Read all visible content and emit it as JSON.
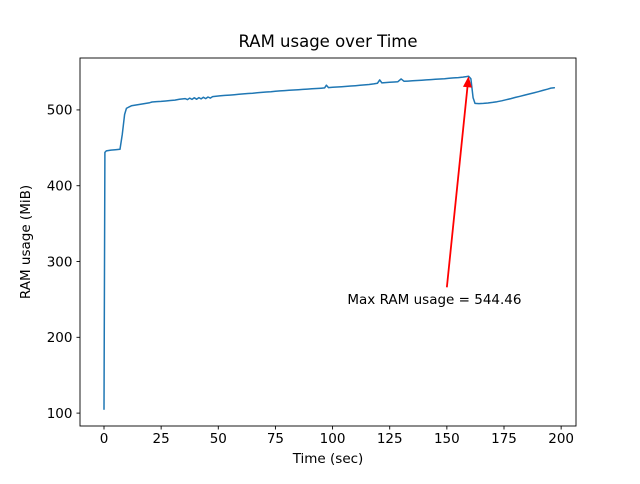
{
  "chart_data": {
    "type": "line",
    "title": "RAM usage over Time",
    "xlabel": "Time (sec)",
    "ylabel": "RAM usage (MiB)",
    "xlim": [
      -10.5,
      206.5
    ],
    "ylim": [
      83,
      568.5
    ],
    "xticks": [
      0,
      25,
      50,
      75,
      100,
      125,
      150,
      175,
      200
    ],
    "yticks": [
      100,
      200,
      300,
      400,
      500
    ],
    "grid": false,
    "legend": "none",
    "colors": {
      "line": "#1f77b4",
      "annotation": "#ff0000",
      "text": "#000000"
    },
    "series": [
      {
        "name": "RAM usage",
        "points": [
          [
            0,
            105
          ],
          [
            0.4,
            444
          ],
          [
            1,
            446
          ],
          [
            3,
            447
          ],
          [
            5,
            447.5
          ],
          [
            7,
            448
          ],
          [
            8,
            468
          ],
          [
            9,
            494
          ],
          [
            9.8,
            502
          ],
          [
            11,
            504
          ],
          [
            12,
            505.5
          ],
          [
            14,
            506.5
          ],
          [
            16,
            507.5
          ],
          [
            18,
            508.5
          ],
          [
            20,
            509.5
          ],
          [
            21,
            510.5
          ],
          [
            23,
            511
          ],
          [
            25,
            511.2
          ],
          [
            27,
            511.8
          ],
          [
            29,
            512.4
          ],
          [
            31,
            513
          ],
          [
            33,
            514
          ],
          [
            34.5,
            514.6
          ],
          [
            35.5,
            515
          ],
          [
            36.5,
            513.6
          ],
          [
            37.5,
            515.6
          ],
          [
            38.5,
            513.9
          ],
          [
            39.5,
            516
          ],
          [
            40.5,
            514.2
          ],
          [
            41.5,
            516.3
          ],
          [
            42.5,
            514.6
          ],
          [
            43.5,
            516.6
          ],
          [
            44.5,
            515
          ],
          [
            45.5,
            517
          ],
          [
            46.5,
            515.6
          ],
          [
            47.5,
            517.6
          ],
          [
            49,
            518
          ],
          [
            51,
            518.6
          ],
          [
            53,
            519.1
          ],
          [
            55,
            519.6
          ],
          [
            57,
            520.1
          ],
          [
            59,
            520.6
          ],
          [
            61,
            521.1
          ],
          [
            63,
            521.6
          ],
          [
            65,
            522.1
          ],
          [
            67,
            522.6
          ],
          [
            69,
            523.1
          ],
          [
            71,
            523.6
          ],
          [
            73,
            524.1
          ],
          [
            75,
            524.6
          ],
          [
            77,
            525.1
          ],
          [
            79,
            525.5
          ],
          [
            81,
            525.9
          ],
          [
            83,
            526.3
          ],
          [
            85,
            526.7
          ],
          [
            87,
            527.1
          ],
          [
            89,
            527.5
          ],
          [
            91,
            527.9
          ],
          [
            93,
            528.3
          ],
          [
            95,
            528.7
          ],
          [
            96.5,
            529
          ],
          [
            97.3,
            532.6
          ],
          [
            98.2,
            529.4
          ],
          [
            100,
            529.8
          ],
          [
            102,
            530.2
          ],
          [
            104,
            530.6
          ],
          [
            106,
            531
          ],
          [
            108,
            531.5
          ],
          [
            110,
            532
          ],
          [
            112,
            532.5
          ],
          [
            114,
            533
          ],
          [
            116,
            533.6
          ],
          [
            118,
            534.3
          ],
          [
            119.6,
            535.1
          ],
          [
            120.6,
            539.6
          ],
          [
            121.6,
            535.6
          ],
          [
            123,
            536
          ],
          [
            125,
            536.5
          ],
          [
            127,
            536.9
          ],
          [
            128.6,
            537.2
          ],
          [
            130,
            540.9
          ],
          [
            131.3,
            537.7
          ],
          [
            133,
            538
          ],
          [
            135,
            538.4
          ],
          [
            137,
            538.8
          ],
          [
            139,
            539.2
          ],
          [
            141,
            539.6
          ],
          [
            143,
            540
          ],
          [
            145,
            540.4
          ],
          [
            147,
            540.8
          ],
          [
            149,
            541.2
          ],
          [
            151,
            541.7
          ],
          [
            153,
            542.2
          ],
          [
            155,
            542.7
          ],
          [
            157,
            543.3
          ],
          [
            158.5,
            543.9
          ],
          [
            159.5,
            544.46
          ],
          [
            160.5,
            541
          ],
          [
            161.5,
            516
          ],
          [
            162.3,
            508.6
          ],
          [
            164,
            508.4
          ],
          [
            166,
            508.6
          ],
          [
            168,
            509.1
          ],
          [
            170,
            509.9
          ],
          [
            172,
            510.9
          ],
          [
            174,
            512.1
          ],
          [
            176,
            513.5
          ],
          [
            178,
            515
          ],
          [
            180,
            516.5
          ],
          [
            182,
            518
          ],
          [
            184,
            519.5
          ],
          [
            186,
            521
          ],
          [
            188,
            522.5
          ],
          [
            190,
            524
          ],
          [
            192,
            525.7
          ],
          [
            194,
            527.4
          ],
          [
            195.5,
            528.8
          ],
          [
            197,
            529.2
          ]
        ]
      }
    ],
    "annotation": {
      "text": "Max RAM usage = 544.46",
      "max_value": 544.46,
      "xy": [
        159.5,
        544.46
      ],
      "arrow_tail": [
        150,
        266
      ],
      "text_pos": [
        106.5,
        244
      ]
    }
  }
}
